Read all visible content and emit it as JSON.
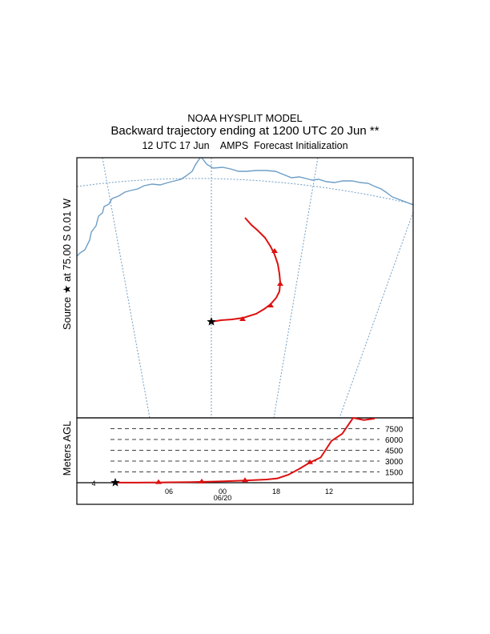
{
  "header": {
    "line1": "NOAA HYSPLIT MODEL",
    "line2": "Backward trajectory ending at 1200 UTC 20 Jun **",
    "line3": "12 UTC 17 Jun    AMPS  Forecast Initialization"
  },
  "map": {
    "source_label": "Source ★ at   75.00 S    0.01 W",
    "coast_color": "#6d9ec6",
    "trajectory_color": "#dd1111"
  },
  "chart_data": {
    "type": "line",
    "ylabel": "Meters AGL",
    "yticks": [
      "7500",
      "6000",
      "4500",
      "3000",
      "1500"
    ],
    "ylim": [
      0,
      9000
    ],
    "xticks": [
      "06",
      "00",
      "18",
      "12"
    ],
    "xtick_sub": "06/20",
    "start_marker_label": "4",
    "series": [
      {
        "x": [
          0,
          3,
          6,
          9,
          12,
          15,
          18,
          21,
          24,
          27,
          30,
          33,
          36,
          39,
          42,
          45,
          48,
          51,
          54,
          57,
          60,
          63,
          66,
          69,
          72
        ],
        "values": [
          10,
          10,
          15,
          25,
          35,
          50,
          70,
          90,
          120,
          160,
          200,
          250,
          300,
          380,
          450,
          600,
          1100,
          1900,
          2800,
          3500,
          5800,
          6800,
          9000,
          8700,
          8900
        ]
      }
    ]
  }
}
